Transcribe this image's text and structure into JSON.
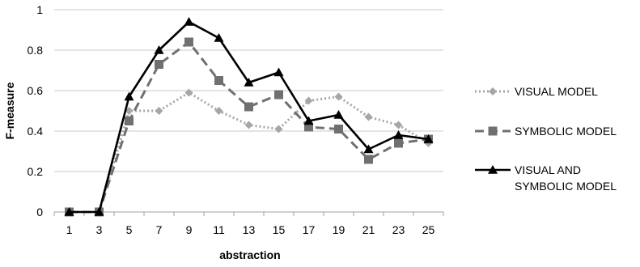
{
  "chart_data": {
    "type": "line",
    "xlabel": "abstraction",
    "ylabel": "F-measure",
    "categories": [
      "1",
      "3",
      "5",
      "7",
      "9",
      "11",
      "13",
      "15",
      "17",
      "19",
      "21",
      "23",
      "25"
    ],
    "ylim": [
      0,
      1
    ],
    "yticks": [
      "0",
      "0.2",
      "0.4",
      "0.6",
      "0.8",
      "1"
    ],
    "grid": "horizontal",
    "legend_position": "right",
    "series": [
      {
        "name": "VISUAL MODEL",
        "color": "#a6a6a6",
        "marker": "diamond",
        "dash": "dotted",
        "values": [
          0.0,
          0.0,
          0.5,
          0.5,
          0.59,
          0.5,
          0.43,
          0.41,
          0.55,
          0.57,
          0.47,
          0.43,
          0.34
        ]
      },
      {
        "name": "SYMBOLIC MODEL",
        "color": "#707070",
        "marker": "square",
        "dash": "dashed",
        "values": [
          0.0,
          0.0,
          0.45,
          0.73,
          0.84,
          0.65,
          0.52,
          0.58,
          0.42,
          0.41,
          0.26,
          0.34,
          0.36
        ]
      },
      {
        "name": "VISUAL AND SYMBOLIC MODEL",
        "legend_lines": [
          "VISUAL AND",
          "SYMBOLIC MODEL"
        ],
        "color": "#000000",
        "marker": "triangle",
        "dash": "solid",
        "values": [
          0.0,
          0.0,
          0.57,
          0.8,
          0.94,
          0.86,
          0.64,
          0.69,
          0.45,
          0.48,
          0.31,
          0.38,
          0.36
        ]
      }
    ]
  }
}
